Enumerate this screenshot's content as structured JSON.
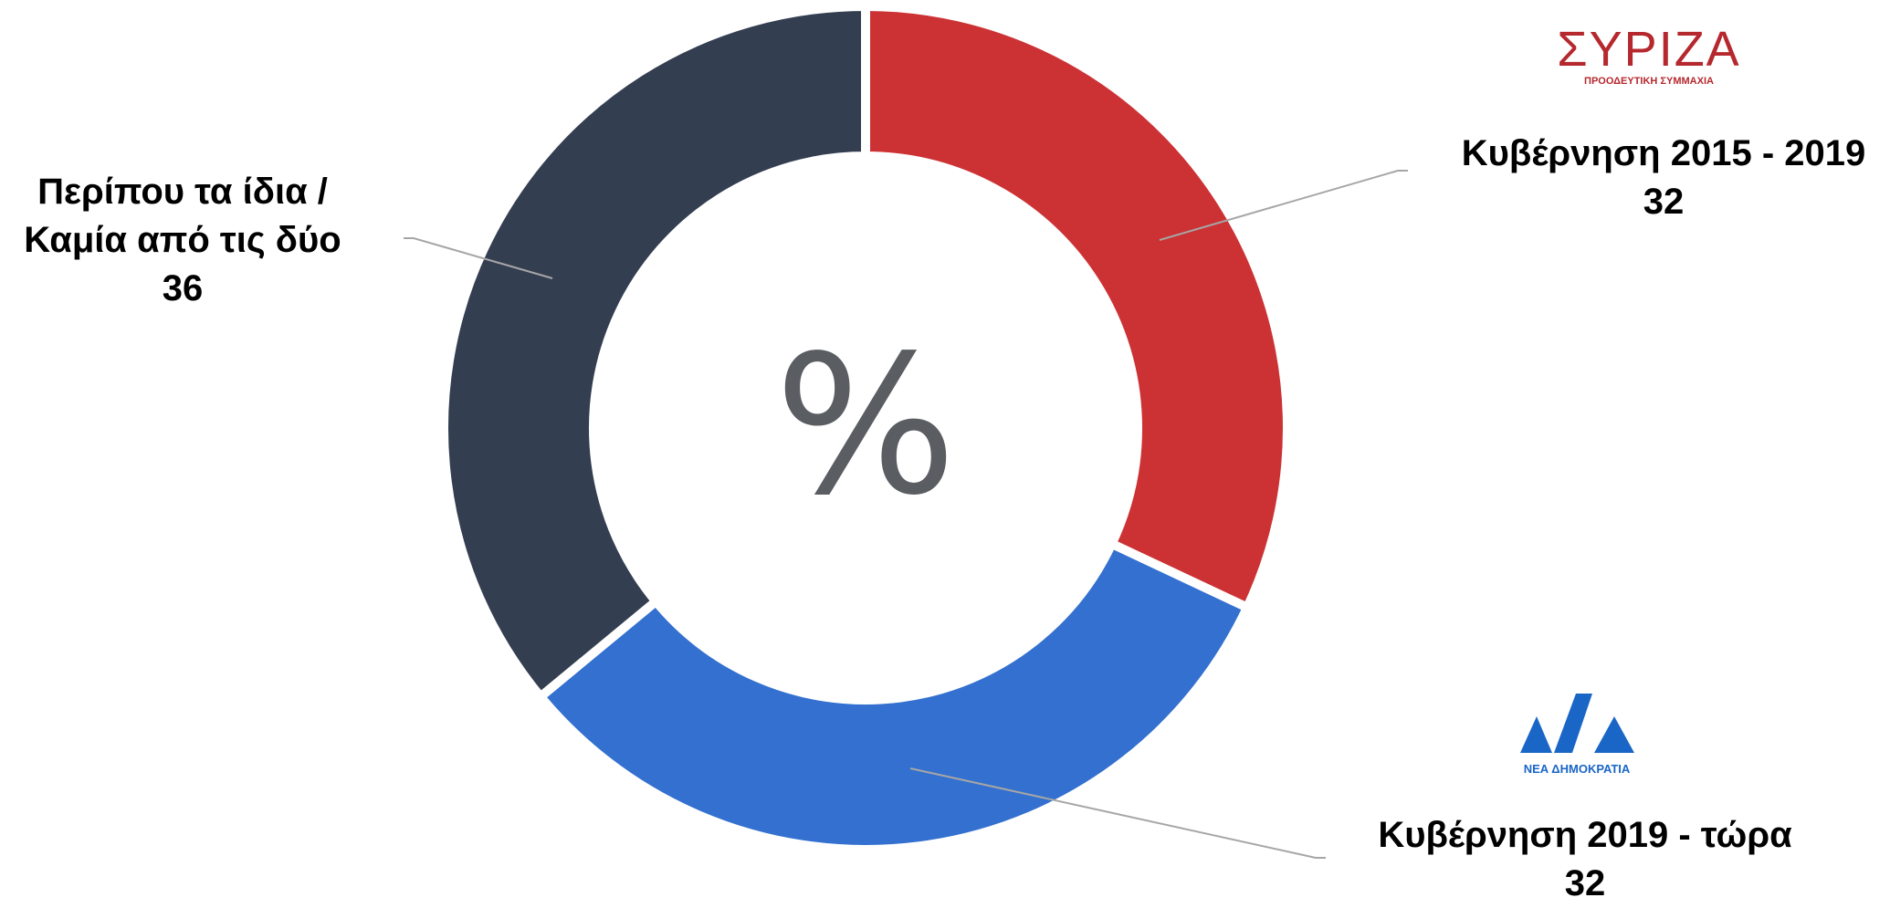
{
  "chart_data": {
    "type": "donut",
    "categories": [
      "Κυβέρνηση 2015 - 2019",
      "Κυβέρνηση 2019 - τώρα",
      "Περίπου τα ίδια / Καμία από τις δύο"
    ],
    "values": [
      32,
      32,
      36
    ],
    "colors": [
      "#cc3234",
      "#3370cf",
      "#343e51"
    ],
    "center_label": "%"
  },
  "logos": [
    {
      "name": "ΣΥΡΙΖΑ",
      "subtitle": "ΠΡΟΟΔΕΥΤΙΚΗ ΣΥΜΜΑΧΙΑ",
      "color": "#b5282e"
    },
    {
      "name": "ΝΔ",
      "subtitle": "ΝΕΑ ΔΗΜΟΚΡΑΤΙΑ",
      "color": "#1a66c7"
    }
  ]
}
